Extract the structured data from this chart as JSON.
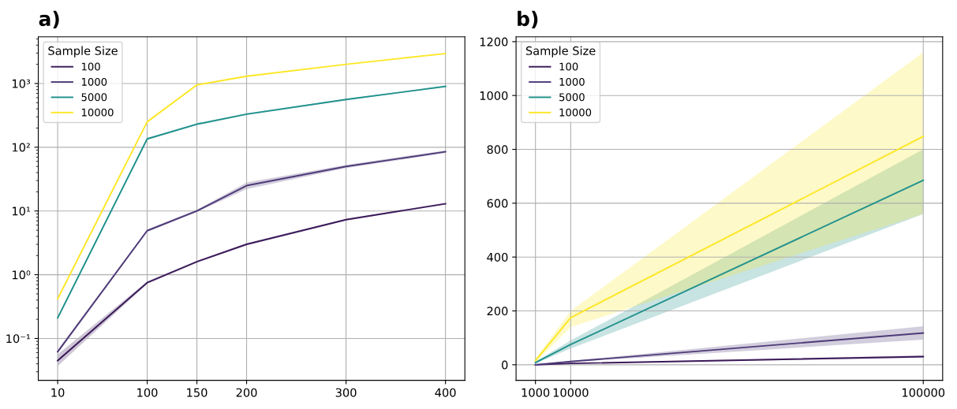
{
  "chart_data": [
    {
      "type": "line",
      "title": "a)",
      "x": [
        10,
        100,
        150,
        200,
        300,
        400
      ],
      "log": "y",
      "xlim": [
        -9.5,
        419.5
      ],
      "xticks": [
        10,
        100,
        150,
        200,
        300,
        400
      ],
      "ylim": [
        0.022,
        5400
      ],
      "yticks": [
        {
          "value": 0.1,
          "label": "10⁻¹"
        },
        {
          "value": 1,
          "label": "10⁰"
        },
        {
          "value": 10,
          "label": "10¹"
        },
        {
          "value": 100,
          "label": "10²"
        },
        {
          "value": 1000,
          "label": "10³"
        }
      ],
      "grid": true,
      "legend": "top left",
      "legend_title": "Sample Size",
      "series": [
        {
          "name": "100",
          "color": "#3b1a5a",
          "values": [
            0.045,
            0.75,
            1.6,
            3.0,
            7.3,
            13
          ],
          "lower": [
            0.037,
            0.72,
            1.55,
            2.9,
            7.1,
            12.6
          ],
          "upper": [
            0.056,
            0.78,
            1.65,
            3.1,
            7.5,
            13.4
          ]
        },
        {
          "name": "1000",
          "color": "#4e3a78",
          "values": [
            0.062,
            4.9,
            10,
            25,
            50,
            85
          ],
          "lower": [
            0.058,
            4.7,
            9.6,
            22,
            47,
            81
          ],
          "upper": [
            0.066,
            5.1,
            10.4,
            28,
            53,
            89
          ]
        },
        {
          "name": "5000",
          "color": "#21918c",
          "values": [
            0.21,
            135,
            230,
            330,
            560,
            900
          ],
          "lower": [
            0.2,
            130,
            222,
            320,
            545,
            880
          ],
          "upper": [
            0.22,
            140,
            238,
            340,
            575,
            920
          ]
        },
        {
          "name": "10000",
          "color": "#fde725",
          "values": [
            0.42,
            250,
            950,
            1300,
            2000,
            2950
          ]
        }
      ]
    },
    {
      "type": "line",
      "title": "b)",
      "x": [
        1000,
        10000,
        100000
      ],
      "xlim": [
        -3950,
        104950
      ],
      "xticks": [
        1000,
        10000,
        100000
      ],
      "ylim": [
        -58,
        1218
      ],
      "yticks": [
        0,
        200,
        400,
        600,
        800,
        1000,
        1200
      ],
      "grid": true,
      "legend": "top left",
      "legend_title": "Sample Size",
      "series": [
        {
          "name": "100",
          "color": "#3b1a5a",
          "values": [
            0,
            5,
            30
          ],
          "lower": [
            0,
            4,
            26
          ],
          "upper": [
            0,
            6,
            35
          ]
        },
        {
          "name": "1000",
          "color": "#4e3a78",
          "values": [
            0,
            12,
            118
          ],
          "lower": [
            0,
            10,
            93
          ],
          "upper": [
            0,
            14,
            143
          ]
        },
        {
          "name": "5000",
          "color": "#21918c",
          "values": [
            8,
            75,
            685
          ],
          "lower": [
            5,
            60,
            560
          ],
          "upper": [
            12,
            90,
            800
          ]
        },
        {
          "name": "10000",
          "color": "#fde725",
          "values": [
            15,
            175,
            848
          ],
          "lower": [
            8,
            140,
            560
          ],
          "upper": [
            22,
            200,
            1160
          ]
        }
      ]
    }
  ]
}
